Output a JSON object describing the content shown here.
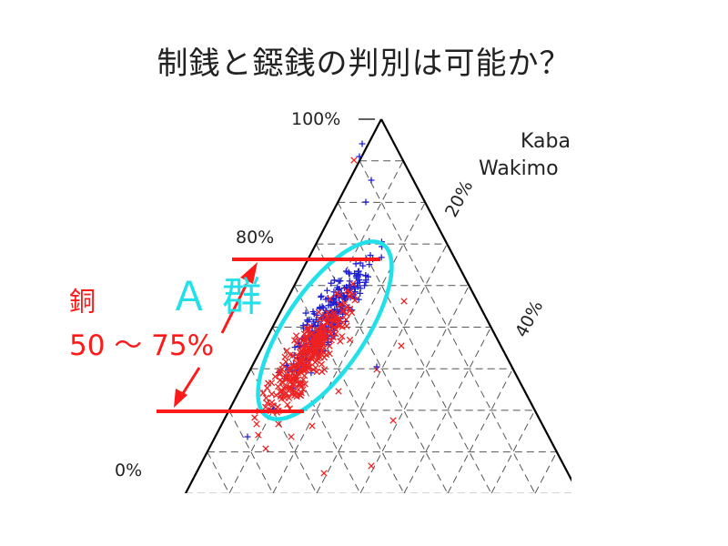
{
  "slide": {
    "title": "制銭と鐚銭の判別は可能か？"
  },
  "chart_data": {
    "type": "scatter",
    "subtype": "ternary",
    "title": "",
    "axis_ticks": {
      "left": [
        "100%",
        "80%",
        "0%"
      ],
      "right": [
        "20%",
        "40%"
      ]
    },
    "legend_partial": [
      "Kaba",
      "Wakimo"
    ],
    "colors": {
      "series_a": "#1f1fd6",
      "series_b": "#ee2222",
      "ellipse": "#22e0ea",
      "annotation": "#ff1a1a"
    },
    "series": [
      {
        "marker": "plus",
        "color": "#1f1fd6"
      },
      {
        "marker": "x",
        "color": "#ee2222"
      }
    ],
    "annotations": {
      "group_label": "Ａ 群",
      "element_label": "銅",
      "range_label": "50 ～ 75%",
      "range_low": 50,
      "range_high": 75
    }
  }
}
